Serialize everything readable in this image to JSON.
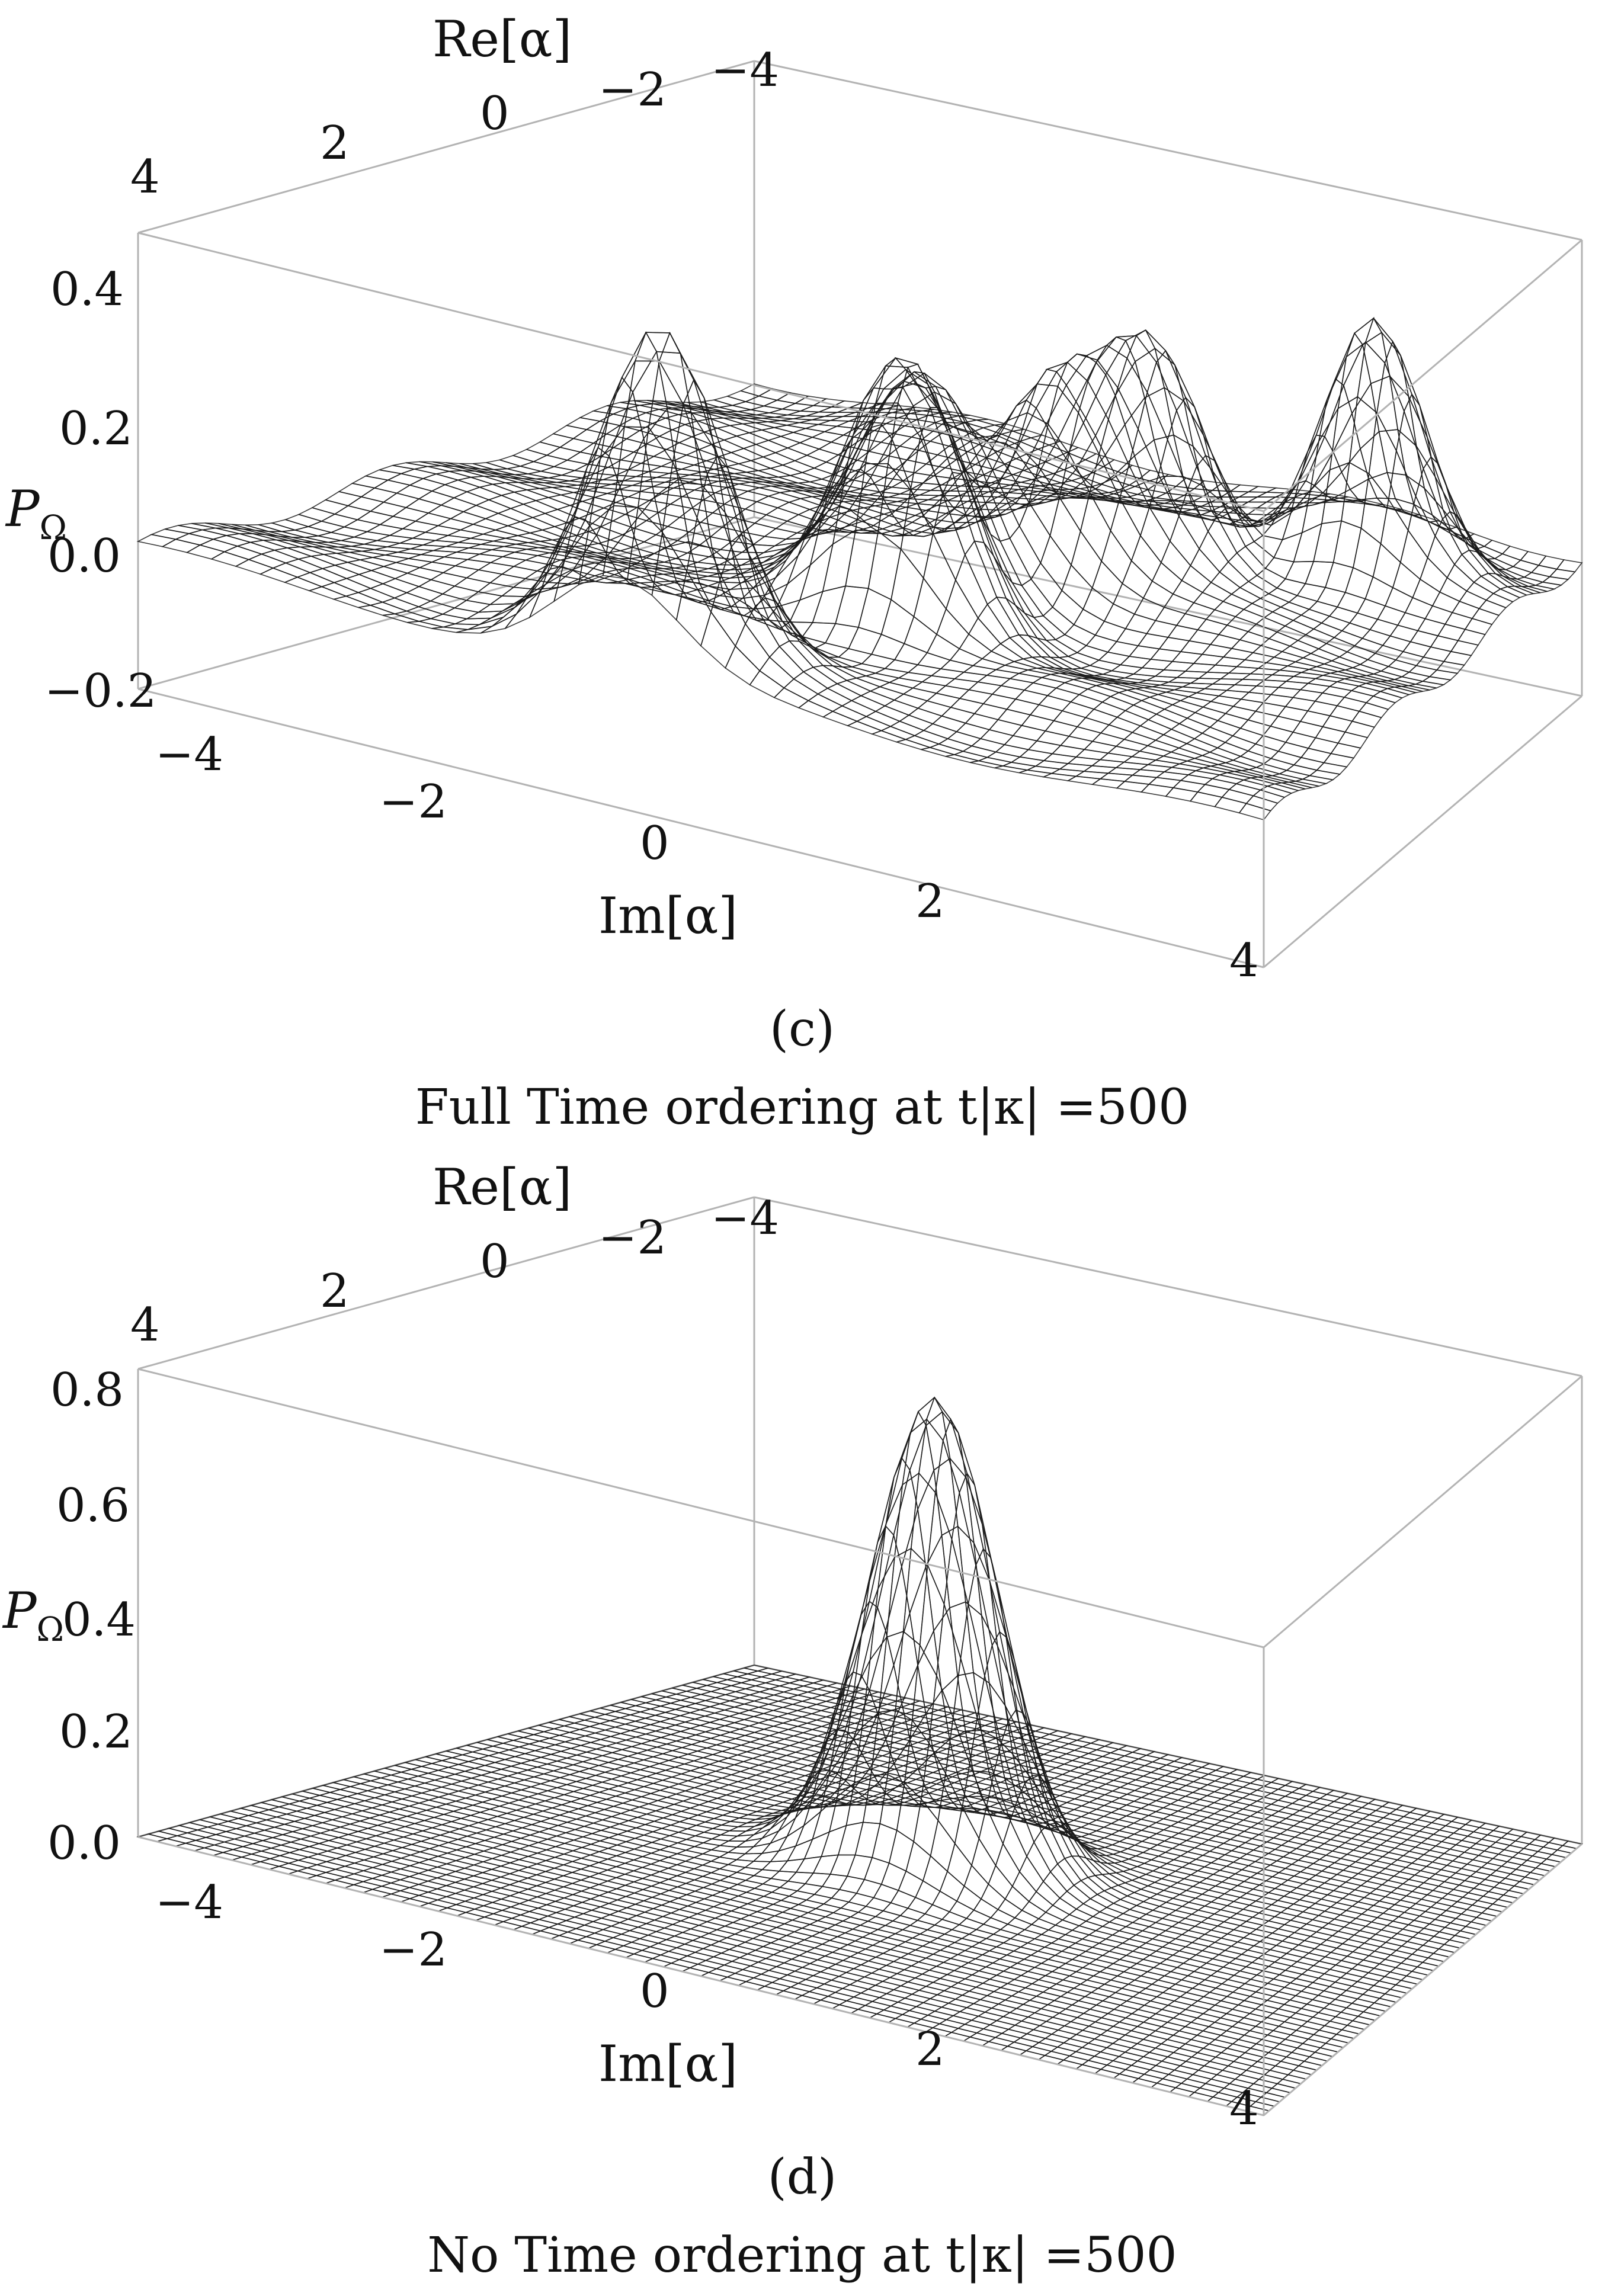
{
  "chart_data": [
    {
      "type": "surface3d",
      "panel_label": "(c)",
      "title": "Full Time ordering at t|κ| =500",
      "xlabel": "Re[α]",
      "ylabel": "Im[α]",
      "zlabel": "P",
      "zlabel_sub": "Ω",
      "x_ticks": [
        "4",
        "2",
        "0",
        "−2",
        "−4"
      ],
      "y_ticks": [
        "−4",
        "−2",
        "0",
        "2",
        "4"
      ],
      "z_ticks": [
        "0.4",
        "0.2",
        "0.0",
        "−0.2"
      ],
      "xlim": [
        -4,
        4
      ],
      "ylim": [
        -4,
        4
      ],
      "zlim": [
        -0.2,
        0.45
      ],
      "surface_color": "#c9b49a",
      "peaks": [
        {
          "re": 3.3,
          "im": -0.6,
          "height": 0.45
        },
        {
          "re": 1.2,
          "im": 0.3,
          "height": 0.36
        },
        {
          "re": -0.8,
          "im": 0.6,
          "height": 0.27
        },
        {
          "re": -1.6,
          "im": 1.1,
          "height": 0.3
        },
        {
          "re": -2.6,
          "im": 2.6,
          "height": 0.36
        },
        {
          "re": 0.2,
          "im": 0.0,
          "height": 0.28
        }
      ]
    },
    {
      "type": "surface3d",
      "panel_label": "(d)",
      "title": "No Time ordering at t|κ| =500",
      "xlabel": "Re[α]",
      "ylabel": "Im[α]",
      "zlabel": "P",
      "zlabel_sub": "Ω",
      "x_ticks": [
        "4",
        "2",
        "0",
        "−2",
        "−4"
      ],
      "y_ticks": [
        "−4",
        "−2",
        "0",
        "2",
        "4"
      ],
      "z_ticks": [
        "0.8",
        "0.6",
        "0.4",
        "0.2",
        "0.0"
      ],
      "xlim": [
        -4,
        4
      ],
      "ylim": [
        -4,
        4
      ],
      "zlim": [
        0.0,
        0.85
      ],
      "surface_color": "#5560b8",
      "peaks": [
        {
          "re": 0.0,
          "im": 0.0,
          "height": 0.85
        }
      ]
    }
  ]
}
